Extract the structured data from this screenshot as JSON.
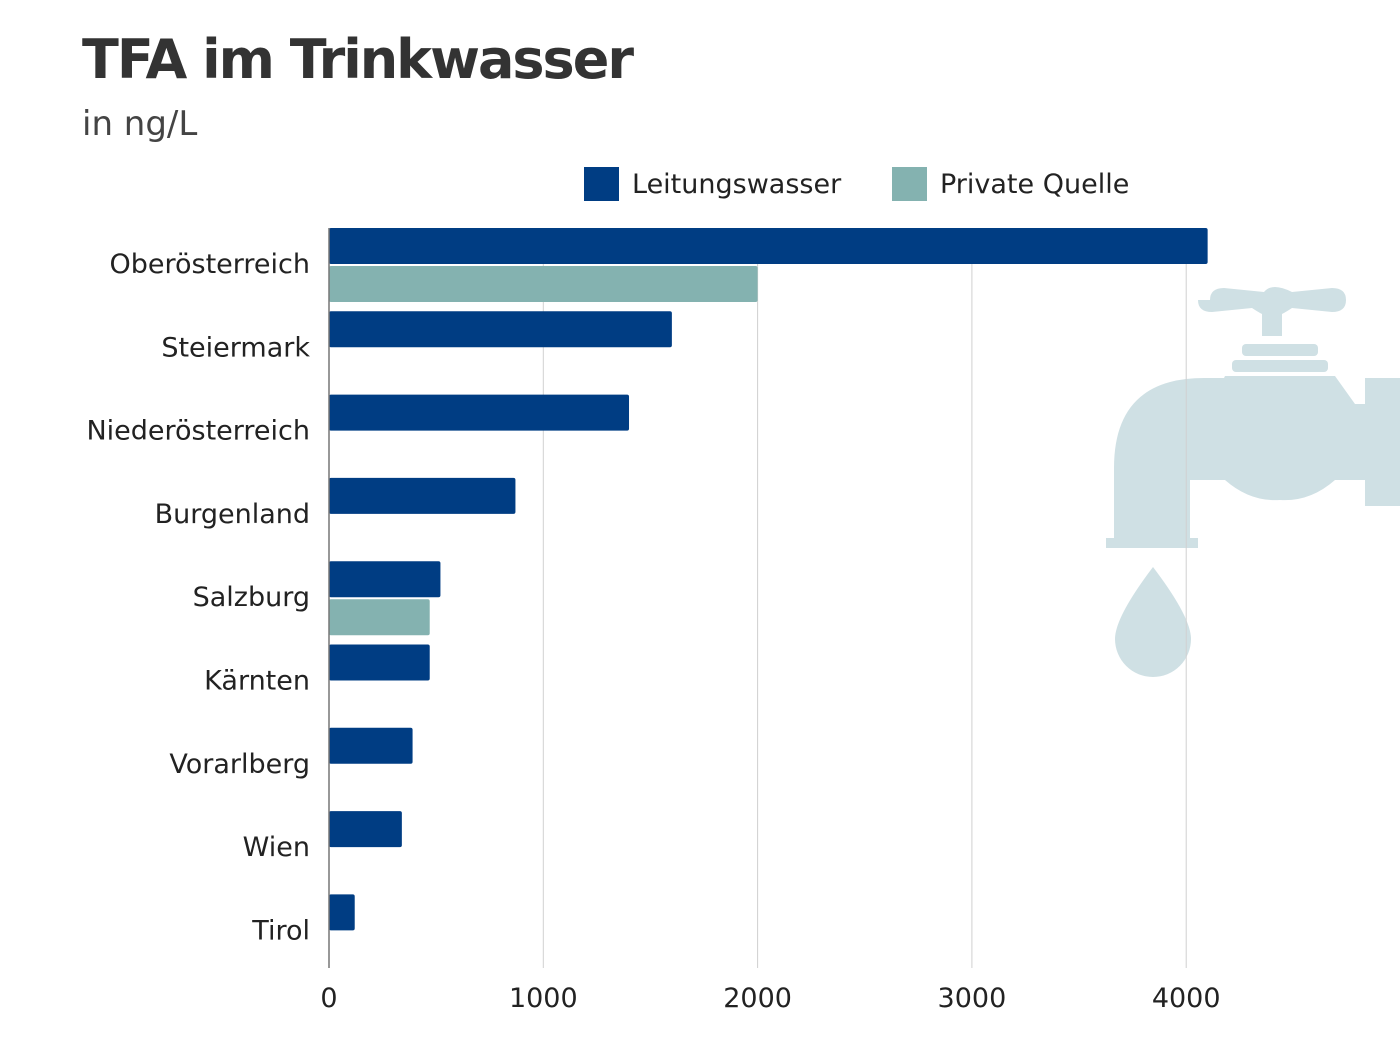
{
  "chart_data": {
    "type": "bar",
    "orientation": "horizontal",
    "title": "TFA im Trinkwasser",
    "subtitle": "in ng/L",
    "categories": [
      "Oberösterreich",
      "Steiermark",
      "Niederösterreich",
      "Burgenland",
      "Salzburg",
      "Kärnten",
      "Vorarlberg",
      "Wien",
      "Tirol"
    ],
    "series": [
      {
        "name": "Leitungswasser",
        "color": "#003d83",
        "values": [
          4100,
          1600,
          1400,
          870,
          520,
          470,
          390,
          340,
          120
        ]
      },
      {
        "name": "Private Quelle",
        "color": "#84b2b0",
        "values": [
          2000,
          null,
          null,
          null,
          470,
          null,
          null,
          null,
          null
        ]
      }
    ],
    "xlim": [
      0,
      4800
    ],
    "xticks": [
      0,
      1000,
      2000,
      3000,
      4000
    ],
    "grid": "vertical",
    "legend": "top",
    "decoration": "faucet-icon",
    "decoration_color": "#cfe0e4"
  }
}
